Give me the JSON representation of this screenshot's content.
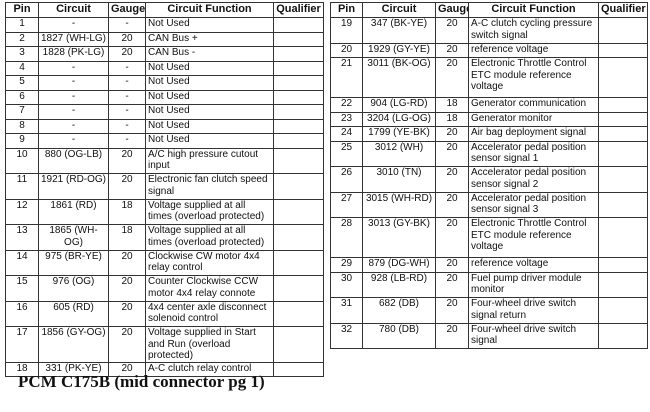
{
  "headers": [
    "Pin",
    "Circuit",
    "Gauge",
    "Circuit Function",
    "Qualifier"
  ],
  "left_rows": [
    {
      "pin": "1",
      "circuit": "-",
      "gauge": "-",
      "function": "Not Used",
      "qualifier": "",
      "h": "s"
    },
    {
      "pin": "2",
      "circuit": "1827 (WH-LG)",
      "gauge": "20",
      "function": "CAN Bus +",
      "qualifier": "",
      "h": "s"
    },
    {
      "pin": "3",
      "circuit": "1828 (PK-LG)",
      "gauge": "20",
      "function": "CAN Bus -",
      "qualifier": "",
      "h": "s"
    },
    {
      "pin": "4",
      "circuit": "-",
      "gauge": "-",
      "function": "Not Used",
      "qualifier": "",
      "h": "s"
    },
    {
      "pin": "5",
      "circuit": "-",
      "gauge": "-",
      "function": "Not Used",
      "qualifier": "",
      "h": "s"
    },
    {
      "pin": "6",
      "circuit": "-",
      "gauge": "-",
      "function": "Not Used",
      "qualifier": "",
      "h": "s"
    },
    {
      "pin": "7",
      "circuit": "-",
      "gauge": "-",
      "function": "Not Used",
      "qualifier": "",
      "h": "s"
    },
    {
      "pin": "8",
      "circuit": "-",
      "gauge": "-",
      "function": "Not Used",
      "qualifier": "",
      "h": "s"
    },
    {
      "pin": "9",
      "circuit": "-",
      "gauge": "-",
      "function": "Not Used",
      "qualifier": "",
      "h": "s"
    },
    {
      "pin": "10",
      "circuit": "880 (OG-LB)",
      "gauge": "20",
      "function": "A/C high pressure cutout input",
      "qualifier": "",
      "h": "d"
    },
    {
      "pin": "11",
      "circuit": "1921 (RD-OG)",
      "gauge": "20",
      "function": "Electronic fan clutch speed signal",
      "qualifier": "",
      "h": "d"
    },
    {
      "pin": "12",
      "circuit": "1861 (RD)",
      "gauge": "18",
      "function": "Voltage supplied at all times (overload protected)",
      "qualifier": "",
      "h": "d"
    },
    {
      "pin": "13",
      "circuit": "1865 (WH-OG)",
      "gauge": "18",
      "function": "Voltage supplied at all times (overload protected)",
      "qualifier": "",
      "h": "d"
    },
    {
      "pin": "14",
      "circuit": "975 (BR-YE)",
      "gauge": "20",
      "function": "Clockwise CW motor 4x4 relay control",
      "qualifier": "",
      "h": "d"
    },
    {
      "pin": "15",
      "circuit": "976 (OG)",
      "gauge": "20",
      "function": "Counter Clockwise CCW motor 4x4 relay connote",
      "qualifier": "",
      "h": "d"
    },
    {
      "pin": "16",
      "circuit": "605 (RD)",
      "gauge": "20",
      "function": "4x4 center axle disconnect solenoid control",
      "qualifier": "",
      "h": "d"
    },
    {
      "pin": "17",
      "circuit": "1856 (GY-OG)",
      "gauge": "20",
      "function": "Voltage supplied in Start and Run (overload protected)",
      "qualifier": "",
      "h": "d"
    },
    {
      "pin": "18",
      "circuit": "331 (PK-YE)",
      "gauge": "20",
      "function": "A-C clutch relay control",
      "qualifier": "",
      "h": "s"
    }
  ],
  "right_rows": [
    {
      "pin": "19",
      "circuit": "347 (BK-YE)",
      "gauge": "20",
      "function": "A-C clutch cycling pressure switch signal",
      "qualifier": "",
      "h": "d"
    },
    {
      "pin": "20",
      "circuit": "1929 (GY-YE)",
      "gauge": "20",
      "function": "reference voltage",
      "qualifier": "",
      "h": "s"
    },
    {
      "pin": "21",
      "circuit": "3011 (BK-OG)",
      "gauge": "20",
      "function": "Electronic Throttle Control ETC module reference voltage",
      "qualifier": "",
      "h": "t"
    },
    {
      "pin": "22",
      "circuit": "904 (LG-RD)",
      "gauge": "18",
      "function": "Generator communication",
      "qualifier": "",
      "h": "s"
    },
    {
      "pin": "23",
      "circuit": "3204 (LG-OG)",
      "gauge": "18",
      "function": "Generator monitor",
      "qualifier": "",
      "h": "s"
    },
    {
      "pin": "24",
      "circuit": "1799 (YE-BK)",
      "gauge": "20",
      "function": "Air bag deployment signal",
      "qualifier": "",
      "h": "s"
    },
    {
      "pin": "25",
      "circuit": "3012 (WH)",
      "gauge": "20",
      "function": "Accelerator pedal position sensor signal 1",
      "qualifier": "",
      "h": "d"
    },
    {
      "pin": "26",
      "circuit": "3010 (TN)",
      "gauge": "20",
      "function": "Accelerator pedal position sensor signal 2",
      "qualifier": "",
      "h": "d"
    },
    {
      "pin": "27",
      "circuit": "3015 (WH-RD)",
      "gauge": "20",
      "function": "Accelerator pedal position sensor signal 3",
      "qualifier": "",
      "h": "d"
    },
    {
      "pin": "28",
      "circuit": "3013 (GY-BK)",
      "gauge": "20",
      "function": "Electronic Throttle Control ETC module reference voltage",
      "qualifier": "",
      "h": "t"
    },
    {
      "pin": "29",
      "circuit": "879 (DG-WH)",
      "gauge": "20",
      "function": "reference voltage",
      "qualifier": "",
      "h": "s"
    },
    {
      "pin": "30",
      "circuit": "928 (LB-RD)",
      "gauge": "20",
      "function": "Fuel pump driver module monitor",
      "qualifier": "",
      "h": "d"
    },
    {
      "pin": "31",
      "circuit": "682 (DB)",
      "gauge": "20",
      "function": "Four-wheel drive switch signal return",
      "qualifier": "",
      "h": "d"
    },
    {
      "pin": "32",
      "circuit": "780 (DB)",
      "gauge": "20",
      "function": "Four-wheel drive switch signal",
      "qualifier": "",
      "h": "d"
    }
  ],
  "caption": "PCM C175B (mid connector pg 1)"
}
